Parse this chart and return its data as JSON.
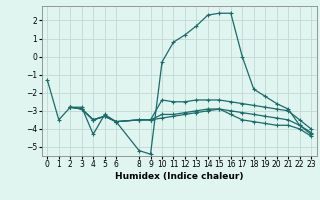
{
  "xlabel": "Humidex (Indice chaleur)",
  "ylabel": "",
  "bg_color": "#e0f5f0",
  "grid_color": "#c0d8d4",
  "line_color": "#1a6b6b",
  "xlim": [
    -0.5,
    23.5
  ],
  "ylim": [
    -5.5,
    2.8
  ],
  "yticks": [
    -5,
    -4,
    -3,
    -2,
    -1,
    0,
    1,
    2
  ],
  "xticks": [
    0,
    1,
    2,
    3,
    4,
    5,
    6,
    8,
    9,
    10,
    11,
    12,
    13,
    14,
    15,
    16,
    17,
    18,
    19,
    20,
    21,
    22,
    23
  ],
  "series": [
    {
      "x": [
        0,
        1,
        2,
        3,
        4,
        5,
        6,
        8,
        9,
        10,
        11,
        12,
        13,
        14,
        15,
        16,
        17,
        18,
        19,
        20,
        21,
        22,
        23
      ],
      "y": [
        -1.3,
        -3.5,
        -2.8,
        -2.8,
        -4.3,
        -3.2,
        -3.6,
        -5.2,
        -5.4,
        -0.3,
        0.8,
        1.2,
        1.7,
        2.3,
        2.4,
        2.4,
        0.0,
        -1.8,
        -2.2,
        -2.6,
        -2.9,
        -3.8,
        -4.3
      ]
    },
    {
      "x": [
        2,
        3,
        4,
        5,
        6,
        8,
        9,
        10,
        11,
        12,
        13,
        14,
        15,
        16,
        17,
        18,
        19,
        20,
        21,
        22,
        23
      ],
      "y": [
        -2.8,
        -2.9,
        -3.5,
        -3.3,
        -3.6,
        -3.5,
        -3.5,
        -2.4,
        -2.5,
        -2.5,
        -2.4,
        -2.4,
        -2.4,
        -2.5,
        -2.6,
        -2.7,
        -2.8,
        -2.9,
        -3.0,
        -3.5,
        -4.0
      ]
    },
    {
      "x": [
        2,
        3,
        4,
        5,
        6,
        8,
        9,
        10,
        11,
        12,
        13,
        14,
        15,
        16,
        17,
        18,
        19,
        20,
        21,
        22,
        23
      ],
      "y": [
        -2.8,
        -2.9,
        -3.5,
        -3.3,
        -3.6,
        -3.5,
        -3.5,
        -3.2,
        -3.2,
        -3.1,
        -3.0,
        -2.9,
        -2.9,
        -3.0,
        -3.1,
        -3.2,
        -3.3,
        -3.4,
        -3.5,
        -3.8,
        -4.2
      ]
    },
    {
      "x": [
        2,
        3,
        4,
        5,
        6,
        8,
        9,
        10,
        11,
        12,
        13,
        14,
        15,
        16,
        17,
        18,
        19,
        20,
        21,
        22,
        23
      ],
      "y": [
        -2.8,
        -2.9,
        -3.5,
        -3.3,
        -3.6,
        -3.5,
        -3.5,
        -3.4,
        -3.3,
        -3.2,
        -3.1,
        -3.0,
        -2.9,
        -3.2,
        -3.5,
        -3.6,
        -3.7,
        -3.8,
        -3.8,
        -4.0,
        -4.4
      ]
    }
  ]
}
